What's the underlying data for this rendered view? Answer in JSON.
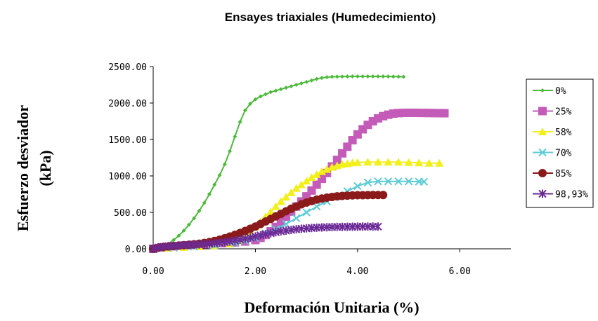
{
  "chart_data": {
    "type": "line",
    "title": "Ensayes triaxiales (Humedecimiento)",
    "xlabel": "Deformación Unitaria (%)",
    "ylabel_lines": [
      "Esfuerzo desviador",
      "(kPa)"
    ],
    "xlim": [
      0,
      7
    ],
    "ylim": [
      0,
      2500
    ],
    "x_ticks": [
      0,
      2,
      4,
      6
    ],
    "x_tick_labels": [
      "0.00",
      "2.00",
      "4.00",
      "6.00"
    ],
    "y_ticks": [
      0,
      500,
      1000,
      1500,
      2000,
      2500
    ],
    "y_tick_labels": [
      "0.00",
      "500.00",
      "1000.00",
      "1500.00",
      "2000.00",
      "2500.00"
    ],
    "grid": false,
    "legend_position": "right",
    "series": [
      {
        "name": "0%",
        "color": "#4dbb3a",
        "marker": "diamond",
        "points": [
          [
            0,
            0
          ],
          [
            0.1,
            10
          ],
          [
            0.2,
            30
          ],
          [
            0.3,
            70
          ],
          [
            0.4,
            120
          ],
          [
            0.5,
            180
          ],
          [
            0.6,
            250
          ],
          [
            0.7,
            330
          ],
          [
            0.8,
            420
          ],
          [
            0.9,
            520
          ],
          [
            1.0,
            630
          ],
          [
            1.1,
            750
          ],
          [
            1.2,
            880
          ],
          [
            1.3,
            1010
          ],
          [
            1.4,
            1160
          ],
          [
            1.5,
            1340
          ],
          [
            1.6,
            1540
          ],
          [
            1.7,
            1740
          ],
          [
            1.8,
            1900
          ],
          [
            1.9,
            1990
          ],
          [
            2.0,
            2050
          ],
          [
            2.1,
            2090
          ],
          [
            2.2,
            2120
          ],
          [
            2.3,
            2150
          ],
          [
            2.4,
            2170
          ],
          [
            2.5,
            2190
          ],
          [
            2.6,
            2210
          ],
          [
            2.7,
            2230
          ],
          [
            2.8,
            2250
          ],
          [
            2.9,
            2270
          ],
          [
            3.0,
            2290
          ],
          [
            3.1,
            2310
          ],
          [
            3.2,
            2330
          ],
          [
            3.3,
            2345
          ],
          [
            3.4,
            2355
          ],
          [
            3.5,
            2360
          ],
          [
            3.6,
            2362
          ],
          [
            3.7,
            2363
          ],
          [
            3.8,
            2364
          ],
          [
            3.9,
            2365
          ],
          [
            4.0,
            2365
          ],
          [
            4.1,
            2365
          ],
          [
            4.2,
            2365
          ],
          [
            4.3,
            2365
          ],
          [
            4.4,
            2365
          ],
          [
            4.5,
            2365
          ],
          [
            4.6,
            2364
          ],
          [
            4.7,
            2363
          ],
          [
            4.8,
            2362
          ],
          [
            4.9,
            2360
          ]
        ]
      },
      {
        "name": "25%",
        "color": "#c45bb8",
        "marker": "square",
        "points": [
          [
            0,
            0
          ],
          [
            0.2,
            20
          ],
          [
            0.4,
            35
          ],
          [
            0.6,
            45
          ],
          [
            0.8,
            55
          ],
          [
            1.0,
            62
          ],
          [
            1.2,
            70
          ],
          [
            1.4,
            78
          ],
          [
            1.6,
            88
          ],
          [
            1.8,
            100
          ],
          [
            2.0,
            120
          ],
          [
            2.1,
            150
          ],
          [
            2.2,
            190
          ],
          [
            2.3,
            240
          ],
          [
            2.4,
            300
          ],
          [
            2.5,
            370
          ],
          [
            2.6,
            440
          ],
          [
            2.7,
            510
          ],
          [
            2.8,
            580
          ],
          [
            2.9,
            650
          ],
          [
            3.0,
            720
          ],
          [
            3.1,
            800
          ],
          [
            3.2,
            880
          ],
          [
            3.3,
            960
          ],
          [
            3.4,
            1040
          ],
          [
            3.5,
            1130
          ],
          [
            3.6,
            1220
          ],
          [
            3.7,
            1310
          ],
          [
            3.8,
            1400
          ],
          [
            3.9,
            1490
          ],
          [
            4.0,
            1570
          ],
          [
            4.1,
            1640
          ],
          [
            4.2,
            1700
          ],
          [
            4.3,
            1750
          ],
          [
            4.4,
            1790
          ],
          [
            4.5,
            1820
          ],
          [
            4.6,
            1840
          ],
          [
            4.7,
            1855
          ],
          [
            4.8,
            1862
          ],
          [
            4.9,
            1865
          ],
          [
            5.0,
            1866
          ],
          [
            5.1,
            1866
          ],
          [
            5.2,
            1865
          ],
          [
            5.3,
            1864
          ],
          [
            5.4,
            1863
          ],
          [
            5.5,
            1862
          ],
          [
            5.6,
            1861
          ],
          [
            5.7,
            1860
          ]
        ]
      },
      {
        "name": "58%",
        "color": "#f2ef19",
        "marker": "triangle",
        "points": [
          [
            0,
            0
          ],
          [
            0.3,
            10
          ],
          [
            0.6,
            20
          ],
          [
            0.9,
            30
          ],
          [
            1.2,
            45
          ],
          [
            1.5,
            70
          ],
          [
            1.7,
            120
          ],
          [
            1.8,
            180
          ],
          [
            1.9,
            240
          ],
          [
            2.0,
            300
          ],
          [
            2.1,
            370
          ],
          [
            2.2,
            440
          ],
          [
            2.3,
            510
          ],
          [
            2.4,
            580
          ],
          [
            2.5,
            650
          ],
          [
            2.6,
            710
          ],
          [
            2.7,
            770
          ],
          [
            2.8,
            830
          ],
          [
            2.9,
            880
          ],
          [
            3.0,
            930
          ],
          [
            3.1,
            980
          ],
          [
            3.2,
            1020
          ],
          [
            3.3,
            1060
          ],
          [
            3.4,
            1090
          ],
          [
            3.5,
            1120
          ],
          [
            3.6,
            1140
          ],
          [
            3.7,
            1160
          ],
          [
            3.8,
            1170
          ],
          [
            3.9,
            1180
          ],
          [
            4.0,
            1185
          ],
          [
            4.2,
            1190
          ],
          [
            4.4,
            1190
          ],
          [
            4.6,
            1190
          ],
          [
            4.8,
            1190
          ],
          [
            5.0,
            1185
          ],
          [
            5.2,
            1180
          ],
          [
            5.4,
            1175
          ],
          [
            5.6,
            1175
          ]
        ]
      },
      {
        "name": "70%",
        "color": "#5ccbd6",
        "marker": "x",
        "points": [
          [
            0,
            0
          ],
          [
            0.4,
            15
          ],
          [
            0.8,
            30
          ],
          [
            1.2,
            50
          ],
          [
            1.6,
            80
          ],
          [
            1.8,
            110
          ],
          [
            2.0,
            150
          ],
          [
            2.2,
            210
          ],
          [
            2.4,
            270
          ],
          [
            2.6,
            340
          ],
          [
            2.8,
            420
          ],
          [
            3.0,
            500
          ],
          [
            3.2,
            580
          ],
          [
            3.4,
            650
          ],
          [
            3.6,
            720
          ],
          [
            3.8,
            790
          ],
          [
            4.0,
            860
          ],
          [
            4.2,
            910
          ],
          [
            4.4,
            925
          ],
          [
            4.6,
            925
          ],
          [
            4.8,
            925
          ],
          [
            5.0,
            925
          ],
          [
            5.2,
            922
          ],
          [
            5.3,
            920
          ]
        ]
      },
      {
        "name": "85%",
        "color": "#8b1a1a",
        "marker": "circle",
        "points": [
          [
            0,
            0
          ],
          [
            0.1,
            15
          ],
          [
            0.2,
            25
          ],
          [
            0.3,
            32
          ],
          [
            0.4,
            38
          ],
          [
            0.5,
            44
          ],
          [
            0.6,
            50
          ],
          [
            0.7,
            56
          ],
          [
            0.8,
            62
          ],
          [
            0.9,
            70
          ],
          [
            1.0,
            80
          ],
          [
            1.1,
            92
          ],
          [
            1.2,
            108
          ],
          [
            1.3,
            125
          ],
          [
            1.4,
            145
          ],
          [
            1.5,
            168
          ],
          [
            1.6,
            192
          ],
          [
            1.7,
            218
          ],
          [
            1.8,
            245
          ],
          [
            1.9,
            275
          ],
          [
            2.0,
            305
          ],
          [
            2.1,
            340
          ],
          [
            2.2,
            375
          ],
          [
            2.3,
            410
          ],
          [
            2.4,
            445
          ],
          [
            2.5,
            480
          ],
          [
            2.6,
            515
          ],
          [
            2.7,
            550
          ],
          [
            2.8,
            580
          ],
          [
            2.9,
            610
          ],
          [
            3.0,
            635
          ],
          [
            3.1,
            655
          ],
          [
            3.2,
            675
          ],
          [
            3.3,
            690
          ],
          [
            3.4,
            702
          ],
          [
            3.5,
            712
          ],
          [
            3.6,
            720
          ],
          [
            3.7,
            726
          ],
          [
            3.8,
            730
          ],
          [
            3.9,
            733
          ],
          [
            4.0,
            735
          ],
          [
            4.1,
            736
          ],
          [
            4.2,
            737
          ],
          [
            4.3,
            738
          ],
          [
            4.4,
            738
          ],
          [
            4.5,
            738
          ]
        ]
      },
      {
        "name": "98,93%",
        "color": "#6b2a96",
        "marker": "star",
        "points": [
          [
            0,
            0
          ],
          [
            0.1,
            20
          ],
          [
            0.2,
            28
          ],
          [
            0.3,
            35
          ],
          [
            0.4,
            40
          ],
          [
            0.5,
            44
          ],
          [
            0.6,
            48
          ],
          [
            0.7,
            52
          ],
          [
            0.8,
            56
          ],
          [
            0.9,
            60
          ],
          [
            1.0,
            65
          ],
          [
            1.1,
            70
          ],
          [
            1.2,
            76
          ],
          [
            1.3,
            82
          ],
          [
            1.4,
            90
          ],
          [
            1.5,
            100
          ],
          [
            1.6,
            112
          ],
          [
            1.7,
            125
          ],
          [
            1.8,
            140
          ],
          [
            1.9,
            155
          ],
          [
            2.0,
            170
          ],
          [
            2.1,
            185
          ],
          [
            2.2,
            200
          ],
          [
            2.3,
            214
          ],
          [
            2.4,
            228
          ],
          [
            2.5,
            240
          ],
          [
            2.6,
            250
          ],
          [
            2.7,
            260
          ],
          [
            2.8,
            268
          ],
          [
            2.9,
            275
          ],
          [
            3.0,
            281
          ],
          [
            3.1,
            286
          ],
          [
            3.2,
            290
          ],
          [
            3.3,
            293
          ],
          [
            3.4,
            296
          ],
          [
            3.5,
            298
          ],
          [
            3.6,
            300
          ],
          [
            3.7,
            301
          ],
          [
            3.8,
            302
          ],
          [
            3.9,
            303
          ],
          [
            4.0,
            304
          ],
          [
            4.1,
            305
          ],
          [
            4.2,
            305
          ],
          [
            4.3,
            305
          ],
          [
            4.4,
            305
          ]
        ]
      }
    ]
  }
}
